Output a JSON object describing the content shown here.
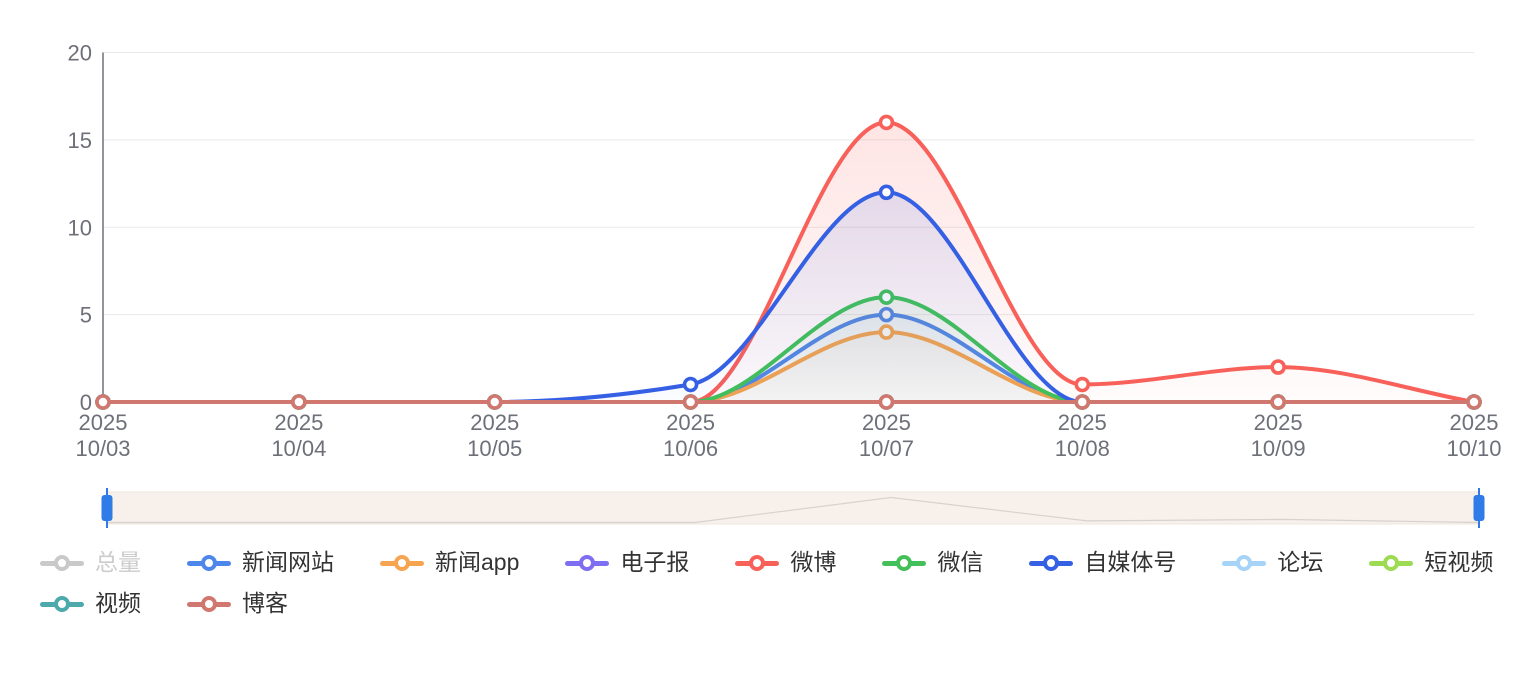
{
  "chart_data": {
    "type": "line",
    "smooth": true,
    "title": "",
    "xlabel": "",
    "ylabel": "",
    "ylim": [
      0,
      20
    ],
    "yticks": [
      0,
      5,
      10,
      15,
      20
    ],
    "grid": true,
    "legend_position": "bottom",
    "categories": [
      {
        "line1": "2025",
        "line2": "10/03"
      },
      {
        "line1": "2025",
        "line2": "10/04"
      },
      {
        "line1": "2025",
        "line2": "10/05"
      },
      {
        "line1": "2025",
        "line2": "10/06"
      },
      {
        "line1": "2025",
        "line2": "10/07"
      },
      {
        "line1": "2025",
        "line2": "10/08"
      },
      {
        "line1": "2025",
        "line2": "10/09"
      },
      {
        "line1": "2025",
        "line2": "10/10"
      }
    ],
    "series": [
      {
        "id": "total",
        "name": "总量",
        "color": "#c9c9c9",
        "selected": false,
        "values": null
      },
      {
        "id": "news-site",
        "name": "新闻网站",
        "color": "#4e87ec",
        "selected": true,
        "values": [
          0,
          0,
          0,
          0,
          5,
          0,
          0,
          0
        ]
      },
      {
        "id": "news-app",
        "name": "新闻app",
        "color": "#f7a450",
        "selected": true,
        "values": [
          0,
          0,
          0,
          0,
          4,
          0,
          0,
          0
        ]
      },
      {
        "id": "epaper",
        "name": "电子报",
        "color": "#7d6ef2",
        "selected": true,
        "values": [
          0,
          0,
          0,
          0,
          0,
          0,
          0,
          0
        ]
      },
      {
        "id": "weibo",
        "name": "微博",
        "color": "#f8605a",
        "selected": true,
        "values": [
          0,
          0,
          0,
          0,
          16,
          1,
          2,
          0
        ]
      },
      {
        "id": "wechat",
        "name": "微信",
        "color": "#43c059",
        "selected": true,
        "values": [
          0,
          0,
          0,
          0,
          6,
          0,
          0,
          0
        ]
      },
      {
        "id": "self-media",
        "name": "自媒体号",
        "color": "#3560e4",
        "selected": true,
        "values": [
          0,
          0,
          0,
          1,
          12,
          0,
          0,
          0
        ]
      },
      {
        "id": "forum",
        "name": "论坛",
        "color": "#a6d3f8",
        "selected": true,
        "values": [
          0,
          0,
          0,
          0,
          0,
          0,
          0,
          0
        ]
      },
      {
        "id": "short-video",
        "name": "短视频",
        "color": "#9ddb52",
        "selected": true,
        "values": [
          0,
          0,
          0,
          0,
          0,
          0,
          0,
          0
        ]
      },
      {
        "id": "video",
        "name": "视频",
        "color": "#4caaad",
        "selected": true,
        "values": [
          0,
          0,
          0,
          0,
          0,
          0,
          0,
          0
        ]
      },
      {
        "id": "blog",
        "name": "博客",
        "color": "#d0776f",
        "selected": true,
        "values": [
          0,
          0,
          0,
          0,
          0,
          0,
          0,
          0
        ]
      }
    ]
  },
  "datazoom": {
    "shadow_values": [
      0,
      0,
      0,
      0,
      16,
      1,
      2,
      0
    ],
    "track_color": "#f8f0ea",
    "track_border": "#eee6de",
    "shadow_line": "#d8d2cc",
    "handle_color": "#2f7be8"
  },
  "axis": {
    "line_color": "#6E7079",
    "grid_color": "#e9e9e9",
    "label_color": "#6E7079"
  }
}
